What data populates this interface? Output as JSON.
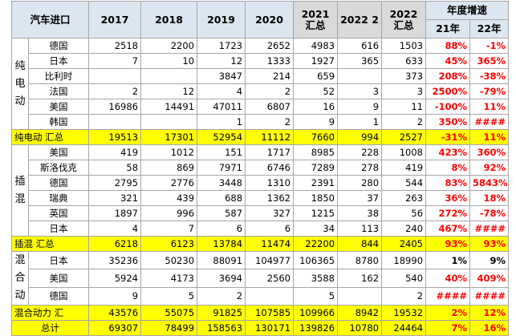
{
  "header": {
    "title": "汽车进口",
    "years": [
      "2017",
      "2018",
      "2019",
      "2020",
      "2021 汇总",
      "2022 2",
      "2022 汇总"
    ],
    "growth": "年度增速",
    "growth_cols": [
      "21年",
      "22年"
    ]
  },
  "groups": [
    {
      "label": "纯电动",
      "rows": [
        {
          "country": "德国",
          "cells": [
            2518,
            2200,
            1723,
            2652,
            4983,
            616,
            1503,
            "88%",
            "-1%"
          ]
        },
        {
          "country": "日本",
          "cells": [
            7,
            10,
            12,
            1333,
            1927,
            365,
            633,
            "45%",
            "365%"
          ]
        },
        {
          "country": "比利时",
          "cells": [
            null,
            null,
            3847,
            214,
            659,
            null,
            373,
            "208%",
            "-38%"
          ]
        },
        {
          "country": "法国",
          "cells": [
            2,
            12,
            4,
            2,
            52,
            3,
            3,
            "2500%",
            "-79%"
          ]
        },
        {
          "country": "美国",
          "cells": [
            16986,
            14491,
            47011,
            6807,
            16,
            9,
            11,
            "-100%",
            "11%"
          ]
        },
        {
          "country": "韩国",
          "cells": [
            null,
            null,
            1,
            2,
            9,
            1,
            2,
            "350%",
            "####"
          ]
        }
      ],
      "subtotal": {
        "label": "纯电动 汇总",
        "cells": [
          19513,
          17301,
          52954,
          11112,
          7660,
          994,
          2527,
          "-31%",
          "11%"
        ]
      }
    },
    {
      "label": "插混",
      "rows": [
        {
          "country": "美国",
          "cells": [
            419,
            1012,
            151,
            1717,
            8985,
            228,
            1008,
            "423%",
            "360%"
          ]
        },
        {
          "country": "斯洛伐克",
          "cells": [
            58,
            869,
            7971,
            6746,
            7289,
            278,
            419,
            "8%",
            "92%"
          ]
        },
        {
          "country": "德国",
          "cells": [
            2795,
            2776,
            3448,
            1310,
            2391,
            280,
            544,
            "83%",
            "5843%"
          ]
        },
        {
          "country": "瑞典",
          "cells": [
            321,
            439,
            688,
            1362,
            1850,
            37,
            263,
            "36%",
            "18%"
          ]
        },
        {
          "country": "英国",
          "cells": [
            1897,
            996,
            587,
            327,
            1215,
            38,
            56,
            "272%",
            "-78%"
          ]
        },
        {
          "country": "日本",
          "cells": [
            4,
            7,
            6,
            6,
            34,
            113,
            240,
            "467%",
            "####"
          ]
        }
      ],
      "subtotal": {
        "label": "插混 汇总",
        "cells": [
          6218,
          6123,
          13784,
          11474,
          22200,
          844,
          2405,
          "93%",
          "93%"
        ]
      }
    },
    {
      "label": "混合动",
      "rows": [
        {
          "country": "日本",
          "cells": [
            35236,
            50230,
            88091,
            104977,
            106365,
            8780,
            18990,
            "1%",
            "9%"
          ],
          "growth_color": "#000000"
        },
        {
          "country": "美国",
          "cells": [
            5924,
            4173,
            3694,
            2560,
            3588,
            162,
            540,
            "40%",
            "409%"
          ]
        },
        {
          "country": "德国",
          "cells": [
            9,
            5,
            2,
            null,
            5,
            null,
            2,
            "####",
            "####"
          ]
        }
      ],
      "subtotal": {
        "label": "混合动力 汇",
        "cells": [
          43576,
          55075,
          91825,
          107585,
          109966,
          8942,
          19532,
          "2%",
          "12%"
        ]
      }
    }
  ],
  "total": {
    "label": "总计",
    "cells": [
      69307,
      78499,
      158563,
      130171,
      139826,
      10780,
      24464,
      "7%",
      "16%"
    ]
  }
}
